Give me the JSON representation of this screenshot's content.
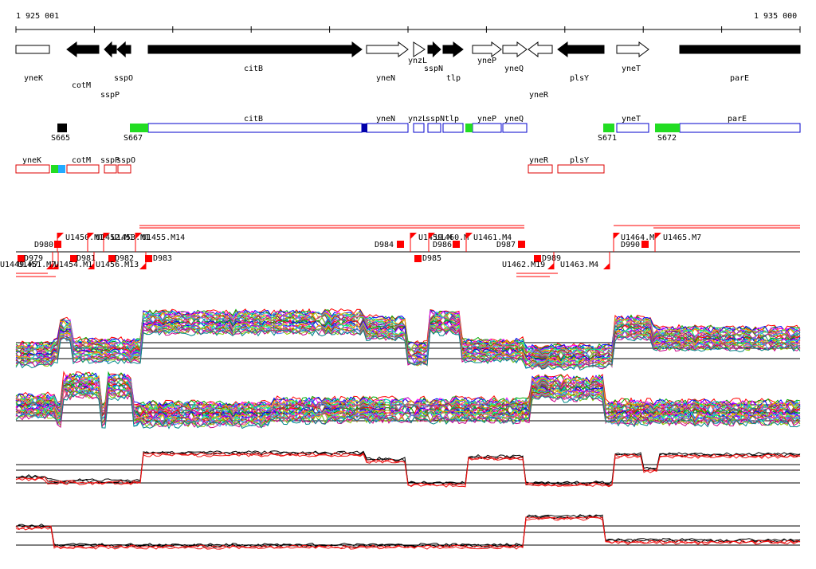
{
  "coords": {
    "start": "1 925 001",
    "end": "1 935 000"
  },
  "genes": [
    {
      "name": "yneK",
      "strand": "open",
      "tip": "none"
    },
    {
      "name": "cotM",
      "strand": "reverse",
      "fill": "solid"
    },
    {
      "name": "sspP",
      "strand": "reverse",
      "fill": "solid"
    },
    {
      "name": "sspO",
      "strand": "reverse",
      "fill": "solid"
    },
    {
      "name": "citB",
      "strand": "forward",
      "fill": "solid"
    },
    {
      "name": "yneN",
      "strand": "forward",
      "fill": "open"
    },
    {
      "name": "ynzL",
      "strand": "forward",
      "fill": "open"
    },
    {
      "name": "sspN",
      "strand": "forward",
      "fill": "solid"
    },
    {
      "name": "tlp",
      "strand": "forward",
      "fill": "solid"
    },
    {
      "name": "yneP",
      "strand": "forward",
      "fill": "open"
    },
    {
      "name": "yneQ",
      "strand": "forward",
      "fill": "open"
    },
    {
      "name": "yneR",
      "strand": "reverse",
      "fill": "open"
    },
    {
      "name": "plsY",
      "strand": "reverse",
      "fill": "solid"
    },
    {
      "name": "yneT",
      "strand": "forward",
      "fill": "open"
    },
    {
      "name": "parE",
      "strand": "forward",
      "fill": "solid"
    }
  ],
  "forward_transcripts": [
    {
      "name": "citB"
    },
    {
      "name": "yneN"
    },
    {
      "name": "ynzL"
    },
    {
      "name": "sspN"
    },
    {
      "name": "tlp"
    },
    {
      "name": "yneP"
    },
    {
      "name": "yneQ"
    },
    {
      "name": "yneT"
    },
    {
      "name": "parE"
    }
  ],
  "sites_forward": [
    {
      "name": "S665",
      "color": "#000000"
    },
    {
      "name": "S667",
      "color": "#22dd22"
    },
    {
      "name": "S671",
      "color": "#22dd22"
    },
    {
      "name": "S672",
      "color": "#22dd22"
    }
  ],
  "reverse_transcripts": [
    {
      "name": "yneK"
    },
    {
      "name": "cotM"
    },
    {
      "name": "sspP"
    },
    {
      "name": "sspO"
    },
    {
      "name": "yneR"
    },
    {
      "name": "plsY"
    }
  ],
  "features_upper": [
    {
      "name": "D980"
    },
    {
      "name": "U1450.M1"
    },
    {
      "name": "U1452.M1"
    },
    {
      "name": "U1453.M1"
    },
    {
      "name": "U1455.M14"
    },
    {
      "name": "D984"
    },
    {
      "name": "U1459.M"
    },
    {
      "name": "U1460.M"
    },
    {
      "name": "D986"
    },
    {
      "name": "U1461.M4"
    },
    {
      "name": "D987"
    },
    {
      "name": "U1464.M"
    },
    {
      "name": "D990"
    },
    {
      "name": "U1465.M7"
    }
  ],
  "features_lower": [
    {
      "name": "D979"
    },
    {
      "name": "U1449.M7"
    },
    {
      "name": "U1451.M7"
    },
    {
      "name": "D981"
    },
    {
      "name": "U1454.M1"
    },
    {
      "name": "D982"
    },
    {
      "name": "U1456.M13"
    },
    {
      "name": "D983"
    },
    {
      "name": "D985"
    },
    {
      "name": "D989"
    },
    {
      "name": "U1462.M19"
    },
    {
      "name": "U1463.M4"
    }
  ],
  "colors": {
    "solid_gene": "#000000",
    "transcript_box": "#0000cc",
    "reverse_box": "#dd0000",
    "feature_mark": "#ff0000",
    "site_green": "#22dd22",
    "site_blue": "#0000aa",
    "site_cyan": "#22aaff",
    "trace_black": "#000000",
    "trace_red": "#ee1111"
  }
}
